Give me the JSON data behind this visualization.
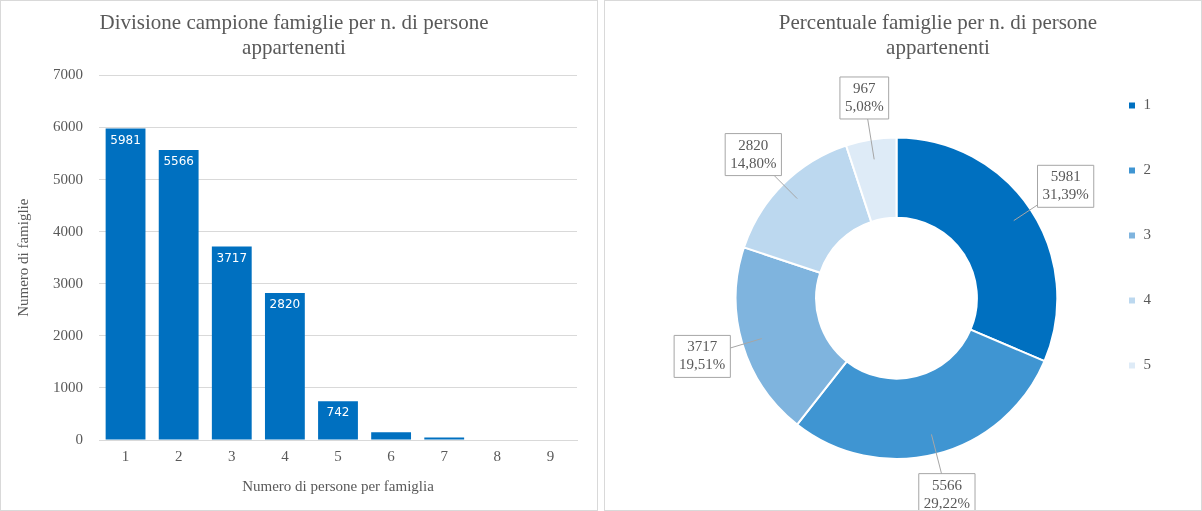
{
  "chart_data": [
    {
      "type": "bar",
      "title": "Divisione campione famiglie per n. di persone appartenenti",
      "xlabel": "Numero di persone per famiglia",
      "ylabel": "Numero di famiglie",
      "categories": [
        "1",
        "2",
        "3",
        "4",
        "5",
        "6",
        "7",
        "8",
        "9"
      ],
      "values": [
        5981,
        5566,
        3717,
        2820,
        742,
        150,
        50,
        null,
        null
      ],
      "color": "#0070c0",
      "value_labels": [
        "5981",
        "5566",
        "3717",
        "2820",
        "742",
        null,
        null,
        null,
        null
      ],
      "ylim": [
        0,
        7000
      ],
      "yticks": [
        0,
        1000,
        2000,
        3000,
        4000,
        5000,
        6000,
        7000
      ],
      "grid": "y",
      "legend": false
    },
    {
      "type": "donut",
      "title": "Percentuale famiglie per n. di persone appartenenti",
      "categories": [
        "1",
        "2",
        "3",
        "4",
        "5"
      ],
      "values": [
        5981,
        5566,
        3717,
        2820,
        967
      ],
      "colors": [
        "#0070c0",
        "#3f95d2",
        "#7fb4de",
        "#bcd8ef",
        "#deebf7"
      ],
      "value_labels": [
        "5981\n31,39%",
        "5566\n29,22%",
        "3717\n19,51%",
        "2820\n14,80%",
        "967\n5,08%"
      ],
      "legend": "right"
    }
  ]
}
